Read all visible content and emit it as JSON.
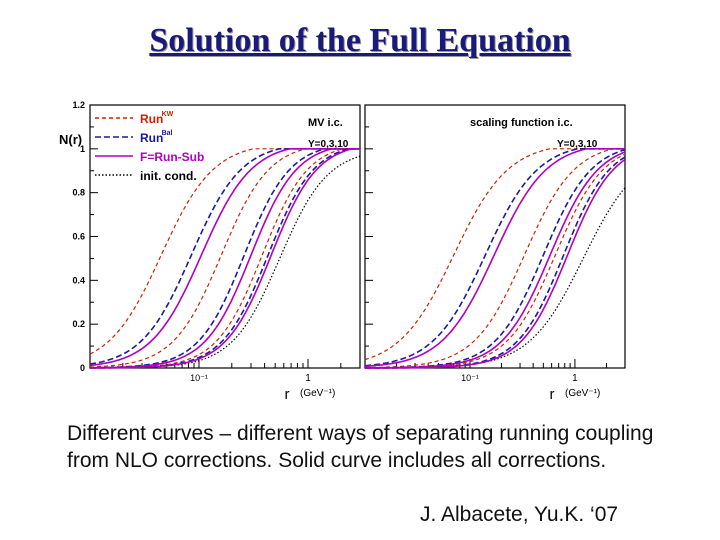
{
  "title": "Solution of the Full Equation",
  "caption": "Different curves – different ways of separating running coupling from NLO corrections. Solid curve includes all corrections.",
  "credit": "J. Albacete, Yu.K. ‘07",
  "chart_data": [
    {
      "type": "line",
      "panel_label": "MV i.c.",
      "y_label_text": "Y=0,3,10",
      "ylabel": "N(r)",
      "xlabel_r": "r",
      "xlabel_unit": "(GeV⁻¹)",
      "x_scale": "log",
      "xlim": [
        0.01,
        3.0
      ],
      "ylim": [
        0,
        1.2
      ],
      "yticks": [
        "0",
        "0.2",
        "0.4",
        "0.6",
        "0.8",
        "1",
        "1.2"
      ],
      "xticks": [
        "10⁻¹",
        "1"
      ],
      "legend": [
        {
          "label": "Run",
          "sup": "KW",
          "color": "#cc2200",
          "dash": "4,3",
          "label_color": "#cc2200"
        },
        {
          "label": "Run",
          "sup": "Bal",
          "color": "#1a1aa0",
          "dash": "6,3",
          "label_color": "#1a1aa0"
        },
        {
          "label": "F=Run-Sub",
          "sup": "",
          "color": "#b000c0",
          "dash": "",
          "label_color": "#b000c0"
        },
        {
          "label": "init. cond.",
          "sup": "",
          "color": "#000000",
          "dash": "1.5,2",
          "label_color": "#000000"
        }
      ],
      "series": [
        {
          "style": "init",
          "r50": 0.55,
          "width": 0.22,
          "cap": false
        },
        {
          "style": "kw",
          "r50": 0.16,
          "width": 0.22,
          "cap": true
        },
        {
          "style": "bal",
          "r50": 0.26,
          "width": 0.21,
          "cap": true
        },
        {
          "style": "full",
          "r50": 0.3,
          "width": 0.21,
          "cap": true
        },
        {
          "style": "kw",
          "r50": 0.045,
          "width": 0.24,
          "cap": true
        },
        {
          "style": "bal",
          "r50": 0.085,
          "width": 0.23,
          "cap": true
        },
        {
          "style": "full",
          "r50": 0.105,
          "width": 0.23,
          "cap": true
        },
        {
          "style": "kw",
          "r50": 0.38,
          "width": 0.21,
          "cap": true
        },
        {
          "style": "bal",
          "r50": 0.43,
          "width": 0.21,
          "cap": true
        },
        {
          "style": "full",
          "r50": 0.46,
          "width": 0.21,
          "cap": true
        }
      ]
    },
    {
      "type": "line",
      "panel_label": "scaling function i.c.",
      "y_label_text": "Y=0,3,10",
      "xlabel_r": "r",
      "xlabel_unit": "(GeV⁻¹)",
      "x_scale": "log",
      "xlim": [
        0.01,
        3.0
      ],
      "ylim": [
        0,
        1.2
      ],
      "xticks": [
        "10⁻¹",
        "1"
      ],
      "series": [
        {
          "style": "init",
          "r50": 1.2,
          "width": 0.26,
          "cap": false
        },
        {
          "style": "kw",
          "r50": 0.33,
          "width": 0.24,
          "cap": true
        },
        {
          "style": "bal",
          "r50": 0.5,
          "width": 0.23,
          "cap": true
        },
        {
          "style": "full",
          "r50": 0.58,
          "width": 0.23,
          "cap": true
        },
        {
          "style": "kw",
          "r50": 0.07,
          "width": 0.26,
          "cap": true
        },
        {
          "style": "bal",
          "r50": 0.14,
          "width": 0.25,
          "cap": true
        },
        {
          "style": "full",
          "r50": 0.17,
          "width": 0.25,
          "cap": true
        },
        {
          "style": "kw",
          "r50": 0.65,
          "width": 0.23,
          "cap": true
        },
        {
          "style": "bal",
          "r50": 0.78,
          "width": 0.22,
          "cap": true
        },
        {
          "style": "full",
          "r50": 0.85,
          "width": 0.22,
          "cap": true
        }
      ]
    }
  ]
}
